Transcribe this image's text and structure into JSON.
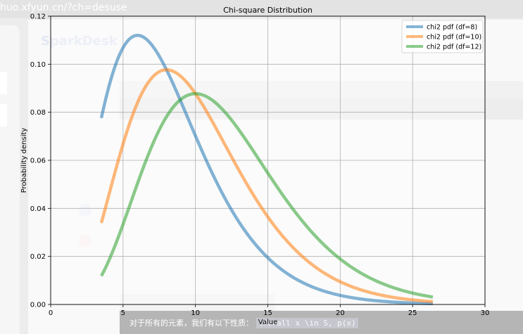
{
  "background": {
    "url_text": "huo.xfyun.cn/?ch=desuse",
    "brand": "SparkDesk",
    "footer_text": "对于所有的元素，我们有以下性质：",
    "footer_code": "\\forall x \\in S, p(x)"
  },
  "chart_data": {
    "type": "line",
    "title": "Chi-square Distribution",
    "xlabel": "Value",
    "ylabel": "Probability density",
    "xlim": [
      0,
      30
    ],
    "ylim": [
      0,
      0.12
    ],
    "x_range": [
      3.5,
      26.4
    ],
    "xticks": [
      "0",
      "5",
      "10",
      "15",
      "20",
      "25",
      "30"
    ],
    "yticks": [
      "0.00",
      "0.02",
      "0.04",
      "0.06",
      "0.08",
      "0.10",
      "0.12"
    ],
    "grid": true,
    "legend_position": "top-right",
    "series": [
      {
        "name": "chi2 pdf (df=8)",
        "df": 8,
        "color": "#1f77b4",
        "peak": [
          6,
          0.112
        ]
      },
      {
        "name": "chi2 pdf (df=10)",
        "df": 10,
        "color": "#ff7f0e",
        "peak": [
          8,
          0.098
        ]
      },
      {
        "name": "chi2 pdf (df=12)",
        "df": 12,
        "color": "#2ca02c",
        "peak": [
          10,
          0.088
        ]
      }
    ]
  }
}
